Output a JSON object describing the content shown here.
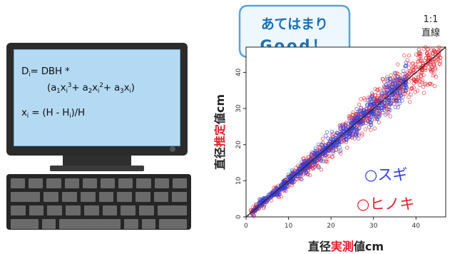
{
  "screen_formula": {
    "line1": {
      "D": "D",
      "i": "i",
      "rest": "= DBH *"
    },
    "line2": {
      "open": "(a",
      "s1": "1",
      "x1": "x",
      "xi1": "i",
      "p1": "3",
      "plus1": "+ a",
      "s2": "2",
      "x2": "x",
      "xi2": "i",
      "p2": "2",
      "plus2": "+ a",
      "s3": "3",
      "x3": "x",
      "xi3": "i",
      "close": ")"
    },
    "line3": {
      "x": "x",
      "i": "i",
      "eq": "= (H - H",
      "i2": "i",
      "end": ")/H"
    }
  },
  "callout": {
    "line1": "あてはまり",
    "line2": "Good！"
  },
  "ref_line_label": {
    "line1": "1:1",
    "line2": "直線"
  },
  "colors": {
    "sugi": "#2b40e0",
    "hinoki": "#e01f2b",
    "callout_text": "#1a6fb5",
    "callout_border": "#5aa3d8",
    "callout_fill": "#eef7fd"
  },
  "chart_data": {
    "type": "scatter",
    "xlabel": {
      "a": "直径",
      "b": "実測",
      "c": "値cm"
    },
    "ylabel": {
      "a": "直径",
      "b": "推定",
      "c": "値cm"
    },
    "xlim": [
      0,
      47
    ],
    "ylim": [
      0,
      47
    ],
    "xticks": [
      "0",
      "10",
      "20",
      "30",
      "40"
    ],
    "yticks": [
      "0",
      "10",
      "20",
      "30",
      "40"
    ],
    "reference_line": "1:1",
    "legend_placement": "bottom-right",
    "series": [
      {
        "name": "スギ",
        "marker": "○",
        "color": "#2b40e0",
        "n": 700,
        "spread": 0.06,
        "xmin": 1,
        "xmax": 38
      },
      {
        "name": "ヒノキ",
        "marker": "○",
        "color": "#e01f2b",
        "n": 900,
        "spread": 0.07,
        "xmin": 1,
        "xmax": 46
      }
    ]
  }
}
